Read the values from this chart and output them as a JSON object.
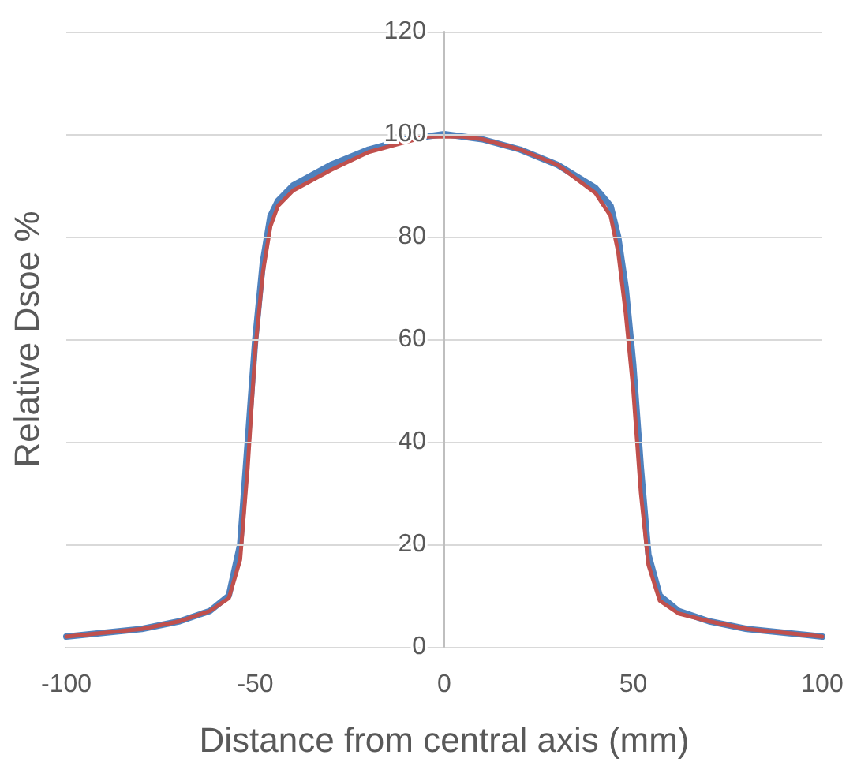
{
  "chart_data": {
    "type": "line",
    "xlabel": "Distance from central axis (mm)",
    "ylabel": "Relative Dsoe %",
    "xlim": [
      -100,
      100
    ],
    "xticks": [
      -100,
      -50,
      0,
      50,
      100
    ],
    "ylim": [
      0,
      120
    ],
    "yticks": [
      0,
      20,
      40,
      60,
      80,
      100,
      120
    ],
    "grid": "y",
    "marker": "none",
    "line_style": "solid",
    "series": [
      {
        "color": "#4f81bd",
        "x": [
          -100,
          -80,
          -70,
          -62,
          -57,
          -54,
          -52,
          -50,
          -48,
          -46,
          -44,
          -40,
          -30,
          -20,
          -10,
          -5,
          0,
          5,
          10,
          20,
          30,
          40,
          44,
          46,
          48,
          50,
          52,
          54,
          57,
          62,
          70,
          80,
          100
        ],
        "values": [
          2,
          3.5,
          5,
          7,
          10,
          20,
          40,
          60,
          75,
          84,
          87,
          90,
          94,
          97,
          99,
          99.5,
          100,
          99.5,
          99,
          97,
          94,
          89.5,
          86,
          80,
          70,
          55,
          35,
          18,
          10,
          7,
          5,
          3.5,
          2
        ]
      },
      {
        "color": "#c0504d",
        "x": [
          -100,
          -80,
          -70,
          -62,
          -57,
          -54,
          -52,
          -50,
          -48,
          -46,
          -44,
          -40,
          -30,
          -20,
          -10,
          -5,
          0,
          5,
          10,
          20,
          30,
          40,
          44,
          46,
          48,
          50,
          52,
          54,
          57,
          62,
          70,
          80,
          100
        ],
        "values": [
          2,
          3.5,
          5,
          7,
          9.5,
          17,
          35,
          58,
          73,
          82,
          86,
          89,
          93,
          96.5,
          98.5,
          99.5,
          99.5,
          99.5,
          99,
          97,
          94,
          88.5,
          84,
          77,
          65,
          50,
          30,
          16,
          9,
          6.5,
          5,
          3.5,
          2
        ]
      }
    ]
  }
}
